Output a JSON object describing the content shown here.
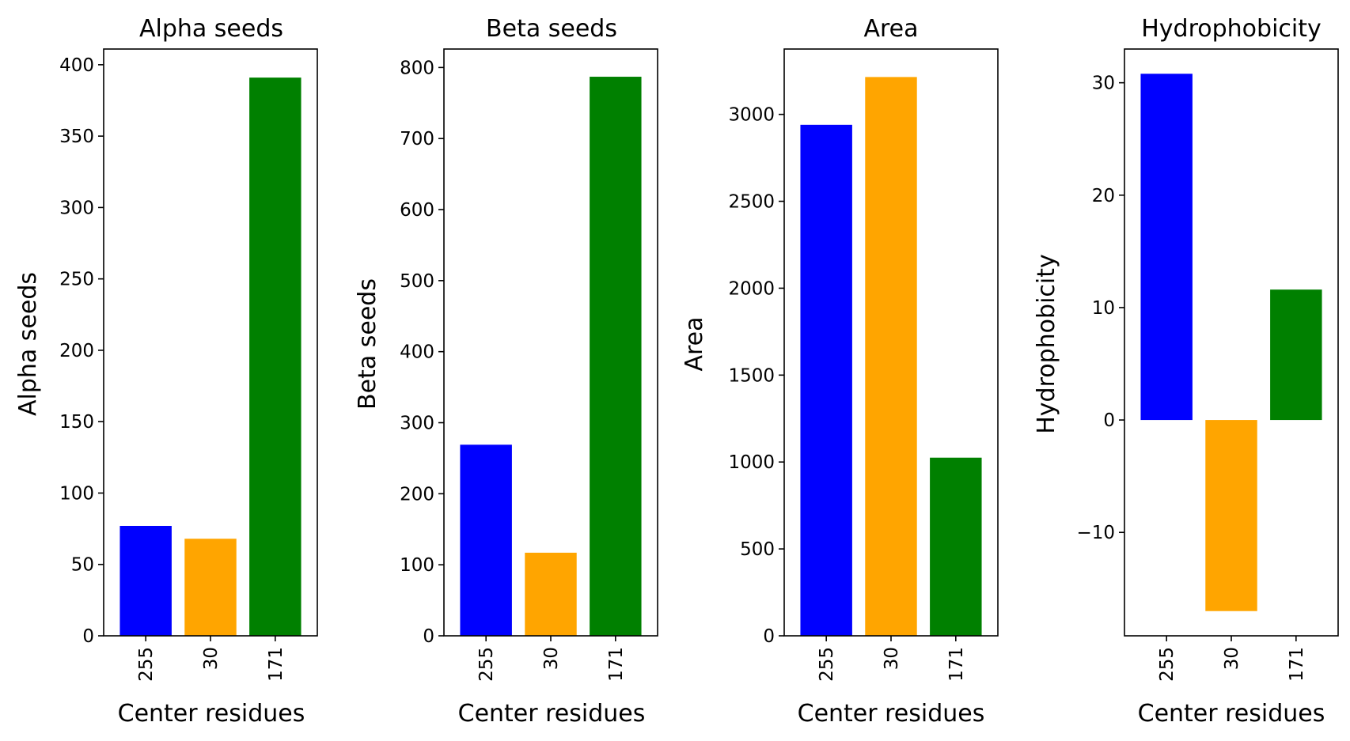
{
  "chart_data": [
    {
      "type": "bar",
      "title": "Alpha seeds",
      "xlabel": "Center residues",
      "ylabel": "Alpha seeds",
      "categories": [
        "255",
        "30",
        "171"
      ],
      "values": [
        77,
        68,
        391
      ],
      "colors": [
        "#0000ff",
        "#ffa500",
        "#008000"
      ],
      "ylim": [
        0,
        411
      ],
      "yticks": [
        0,
        50,
        100,
        150,
        200,
        250,
        300,
        350,
        400
      ],
      "ytick_labels": [
        "0",
        "50",
        "100",
        "150",
        "200",
        "250",
        "300",
        "350",
        "400"
      ],
      "grid": false
    },
    {
      "type": "bar",
      "title": "Beta seeds",
      "xlabel": "Center residues",
      "ylabel": "Beta seeds",
      "categories": [
        "255",
        "30",
        "171"
      ],
      "values": [
        269,
        117,
        787
      ],
      "colors": [
        "#0000ff",
        "#ffa500",
        "#008000"
      ],
      "ylim": [
        0,
        826
      ],
      "yticks": [
        0,
        100,
        200,
        300,
        400,
        500,
        600,
        700,
        800
      ],
      "ytick_labels": [
        "0",
        "100",
        "200",
        "300",
        "400",
        "500",
        "600",
        "700",
        "800"
      ],
      "grid": false
    },
    {
      "type": "bar",
      "title": "Area",
      "xlabel": "Center residues",
      "ylabel": "Area",
      "categories": [
        "255",
        "30",
        "171"
      ],
      "values": [
        2940,
        3215,
        1025
      ],
      "colors": [
        "#0000ff",
        "#ffa500",
        "#008000"
      ],
      "ylim": [
        0,
        3376
      ],
      "yticks": [
        0,
        500,
        1000,
        1500,
        2000,
        2500,
        3000
      ],
      "ytick_labels": [
        "0",
        "500",
        "1000",
        "1500",
        "2000",
        "2500",
        "3000"
      ],
      "grid": false
    },
    {
      "type": "bar",
      "title": "Hydrophobicity",
      "xlabel": "Center residues",
      "ylabel": "Hydrophobicity",
      "categories": [
        "255",
        "30",
        "171"
      ],
      "values": [
        30.8,
        -17.0,
        11.6
      ],
      "colors": [
        "#0000ff",
        "#ffa500",
        "#008000"
      ],
      "ylim": [
        -19.2,
        33.0
      ],
      "yticks": [
        -10,
        0,
        10,
        20,
        30
      ],
      "ytick_labels": [
        "−10",
        "0",
        "10",
        "20",
        "30"
      ],
      "grid": false
    }
  ]
}
